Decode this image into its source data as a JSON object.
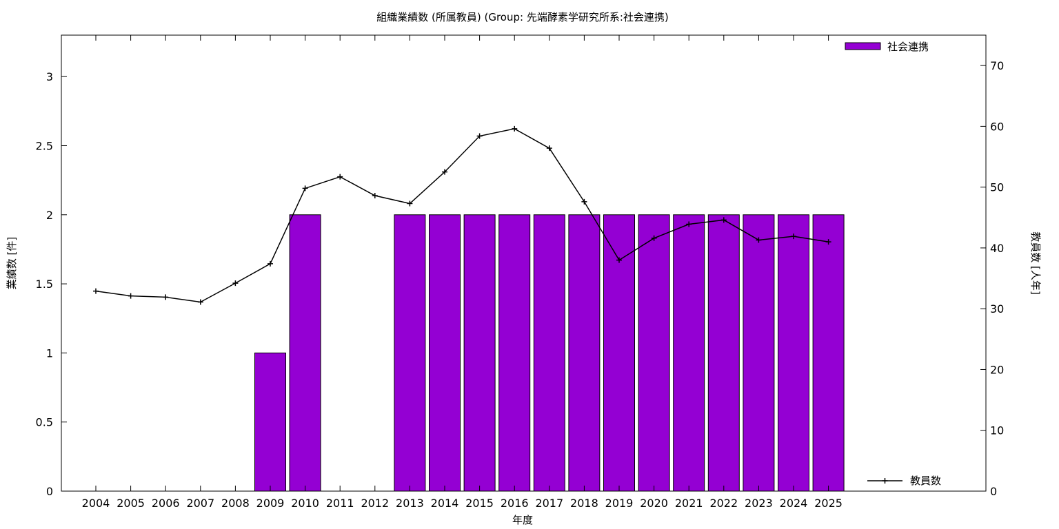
{
  "chart_data": {
    "type": "bar",
    "title": "組織業績数 (所属教員) (Group: 先端酵素学研究所系:社会連携)",
    "xlabel": "年度",
    "ylabel": "業績数 [件]",
    "y2label": "教員数 [人年]",
    "categories": [
      "2004",
      "2005",
      "2006",
      "2007",
      "2008",
      "2009",
      "2010",
      "2011",
      "2012",
      "2013",
      "2014",
      "2015",
      "2016",
      "2017",
      "2018",
      "2019",
      "2020",
      "2021",
      "2022",
      "2023",
      "2024",
      "2025"
    ],
    "ylim": [
      0,
      3.3
    ],
    "yticks": [
      0,
      0.5,
      1,
      1.5,
      2,
      2.5,
      3
    ],
    "ytick_labels": [
      "0",
      "0.5",
      "1",
      "1.5",
      "2",
      "2.5",
      "3"
    ],
    "y2lim": [
      0,
      75
    ],
    "y2ticks": [
      0,
      10,
      20,
      30,
      40,
      50,
      60,
      70
    ],
    "y2tick_labels": [
      "0",
      "10",
      "20",
      "30",
      "40",
      "50",
      "60",
      "70"
    ],
    "grid": false,
    "series": [
      {
        "name": "社会連携",
        "type": "bar",
        "axis": "left",
        "color": "#9400d3",
        "values": [
          0,
          0,
          0,
          0,
          0,
          1,
          2,
          0,
          0,
          2,
          2,
          2,
          2,
          2,
          2,
          2,
          2,
          2,
          2,
          2,
          2,
          2
        ]
      },
      {
        "name": "教員数",
        "type": "line",
        "axis": "right",
        "color": "#000000",
        "marker": "plus",
        "values": [
          32.9,
          32.1,
          31.9,
          31.1,
          34.2,
          37.4,
          49.8,
          51.7,
          48.6,
          47.3,
          52.5,
          58.4,
          59.6,
          56.4,
          47.6,
          38.0,
          41.6,
          43.9,
          44.6,
          41.3,
          41.9,
          41.0
        ]
      }
    ],
    "legend": [
      {
        "label": "社会連携",
        "position": "top-right"
      },
      {
        "label": "教員数",
        "position": "bottom-right"
      }
    ]
  }
}
